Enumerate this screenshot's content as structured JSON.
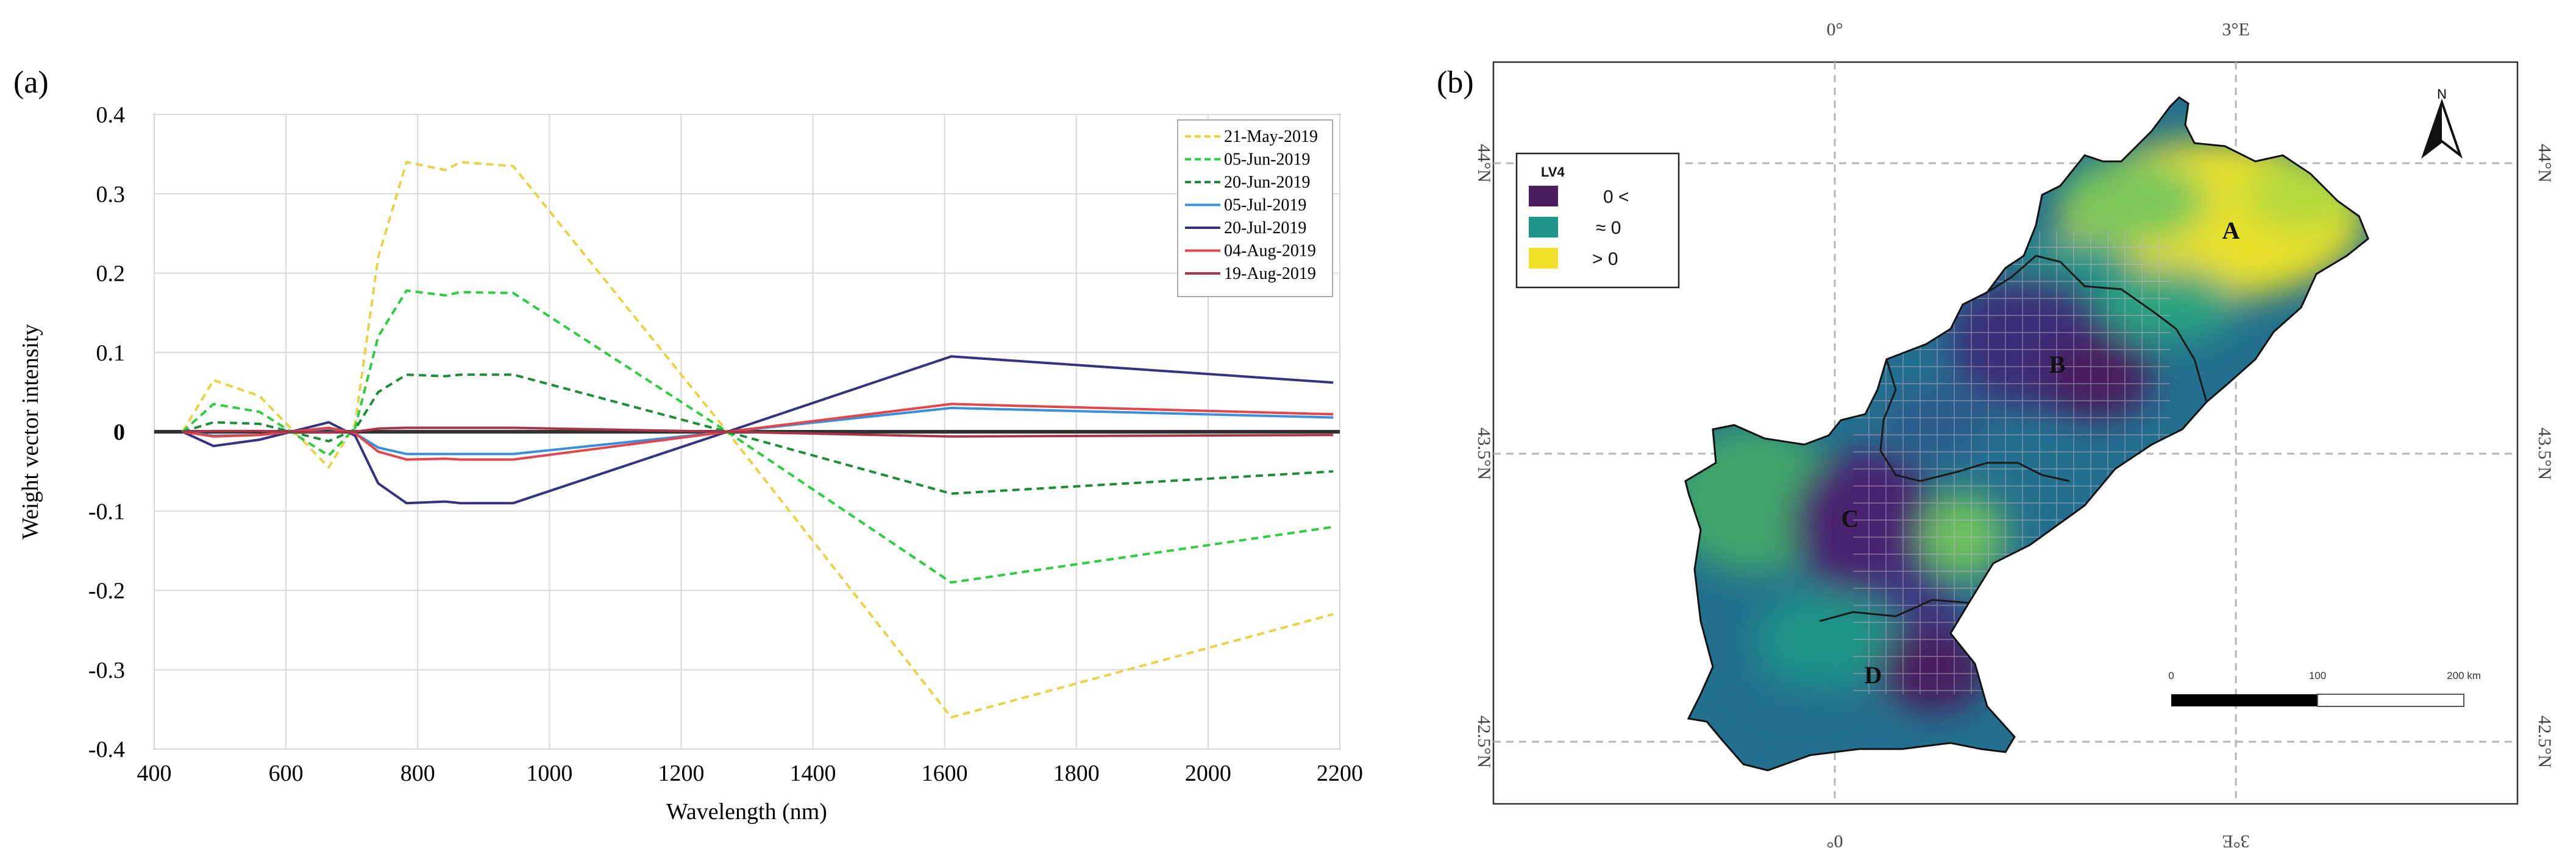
{
  "colors": {
    "yellow": "#e8d24a",
    "green": "#2ecc40",
    "darkgreen": "#1e8c36",
    "blue": "#3b8fd9",
    "navy": "#35337f",
    "red": "#e0474c",
    "darkred": "#a8344a",
    "black": "#333333"
  },
  "chart_data": [
    {
      "type": "line",
      "panel_label": "(a)",
      "title": "",
      "xlabel": "Wavelength (nm)",
      "ylabel": "Weight vector intensity",
      "xlim": [
        400,
        2200
      ],
      "ylim": [
        -0.4,
        0.4
      ],
      "xticks": [
        400,
        600,
        800,
        1000,
        1200,
        1400,
        1600,
        1800,
        2000,
        2200
      ],
      "yticks": [
        -0.4,
        -0.3,
        -0.2,
        -0.1,
        0,
        0.1,
        0.2,
        0.3,
        0.4
      ],
      "ytick_labels": [
        "-0.4",
        "-0.3",
        "-0.2",
        "-0.1",
        "0",
        "0.1",
        "0.2",
        "0.3",
        "0.4"
      ],
      "grid": true,
      "legend_position": "top-right",
      "series": [
        {
          "name": "21-May-2019",
          "color": "#e8d24a",
          "dash": "dashed",
          "x": [
            443,
            490,
            560,
            665,
            705,
            740,
            783,
            842,
            865,
            945,
            1270,
            1610,
            2190
          ],
          "y": [
            0,
            0.065,
            0.045,
            -0.045,
            0.01,
            0.22,
            0.34,
            0.33,
            0.34,
            0.335,
            0,
            -0.36,
            -0.23
          ]
        },
        {
          "name": "05-Jun-2019",
          "color": "#2ecc40",
          "dash": "dashed",
          "x": [
            443,
            490,
            560,
            665,
            705,
            740,
            783,
            842,
            865,
            945,
            1270,
            1610,
            2190
          ],
          "y": [
            0,
            0.035,
            0.025,
            -0.03,
            0.005,
            0.12,
            0.178,
            0.172,
            0.176,
            0.175,
            0,
            -0.19,
            -0.12
          ]
        },
        {
          "name": "20-Jun-2019",
          "color": "#1e8c36",
          "dash": "dashed",
          "x": [
            443,
            490,
            560,
            665,
            705,
            740,
            783,
            842,
            865,
            945,
            1270,
            1610,
            2190
          ],
          "y": [
            0,
            0.012,
            0.01,
            -0.012,
            0.003,
            0.05,
            0.072,
            0.07,
            0.072,
            0.072,
            0,
            -0.078,
            -0.05
          ]
        },
        {
          "name": "05-Jul-2019",
          "color": "#3b8fd9",
          "dash": "solid",
          "x": [
            443,
            490,
            560,
            665,
            705,
            740,
            783,
            842,
            865,
            945,
            1270,
            1610,
            2190
          ],
          "y": [
            0,
            -0.005,
            -0.004,
            0.004,
            -0.002,
            -0.02,
            -0.028,
            -0.028,
            -0.028,
            -0.028,
            0,
            0.03,
            0.018
          ]
        },
        {
          "name": "20-Jul-2019",
          "color": "#35337f",
          "dash": "solid",
          "x": [
            443,
            490,
            560,
            665,
            705,
            740,
            783,
            842,
            865,
            945,
            1270,
            1610,
            2190
          ],
          "y": [
            0,
            -0.018,
            -0.01,
            0.012,
            -0.005,
            -0.065,
            -0.09,
            -0.088,
            -0.09,
            -0.09,
            0,
            0.095,
            0.062
          ]
        },
        {
          "name": "04-Aug-2019",
          "color": "#e0474c",
          "dash": "solid",
          "x": [
            443,
            490,
            560,
            665,
            705,
            740,
            783,
            842,
            865,
            945,
            1270,
            1610,
            2190
          ],
          "y": [
            0,
            -0.006,
            -0.004,
            0.005,
            -0.002,
            -0.025,
            -0.035,
            -0.034,
            -0.035,
            -0.035,
            0,
            0.035,
            0.022
          ]
        },
        {
          "name": "19-Aug-2019",
          "color": "#a8344a",
          "dash": "solid",
          "x": [
            443,
            490,
            560,
            665,
            705,
            740,
            783,
            842,
            865,
            945,
            1270,
            1610,
            2190
          ],
          "y": [
            0,
            0.001,
            0.001,
            -0.001,
            0,
            0.004,
            0.005,
            0.005,
            0.005,
            0.005,
            0,
            -0.006,
            -0.004
          ]
        }
      ]
    },
    {
      "type": "map",
      "panel_label": "(b)",
      "legend_title": "LV4",
      "legend": [
        {
          "label": "0 <",
          "color": "#4a1d5e"
        },
        {
          "label": "≈ 0",
          "color": "#1f9488"
        },
        {
          "label": "> 0",
          "color": "#f2e12a"
        }
      ],
      "north_label": "N",
      "lon_labels_top": [
        "0°",
        "3°E"
      ],
      "lon_labels_bottom": [
        "0°",
        "3°E"
      ],
      "lat_labels_left": [
        "44°N",
        "43.5°N",
        "42.5°N"
      ],
      "lat_labels_right": [
        "44°N",
        "43.5°N",
        "42.5°N"
      ],
      "regions": [
        "A",
        "B",
        "C",
        "D"
      ],
      "scale_bar": {
        "labels": [
          "0",
          "100",
          "200 km"
        ]
      }
    }
  ]
}
